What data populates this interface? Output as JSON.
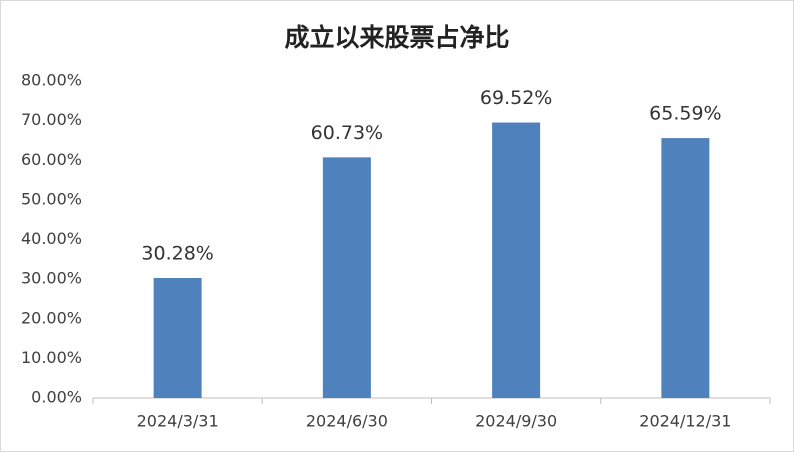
{
  "chart_data": {
    "type": "bar",
    "title": "成立以来股票占净比",
    "categories": [
      "2024/3/31",
      "2024/6/30",
      "2024/9/30",
      "2024/12/31"
    ],
    "values": [
      30.28,
      60.73,
      69.52,
      65.59
    ],
    "value_labels": [
      "30.28%",
      "60.73%",
      "69.52%",
      "65.59%"
    ],
    "color": "#4f81bd",
    "ylim": [
      0,
      80
    ],
    "yticks": [
      {
        "value": 0,
        "label": "0.00%"
      },
      {
        "value": 10,
        "label": "10.00%"
      },
      {
        "value": 20,
        "label": "20.00%"
      },
      {
        "value": 30,
        "label": "30.00%"
      },
      {
        "value": 40,
        "label": "40.00%"
      },
      {
        "value": 50,
        "label": "50.00%"
      },
      {
        "value": 60,
        "label": "60.00%"
      },
      {
        "value": 70,
        "label": "70.00%"
      },
      {
        "value": 80,
        "label": "80.00%"
      }
    ],
    "grid": false
  }
}
